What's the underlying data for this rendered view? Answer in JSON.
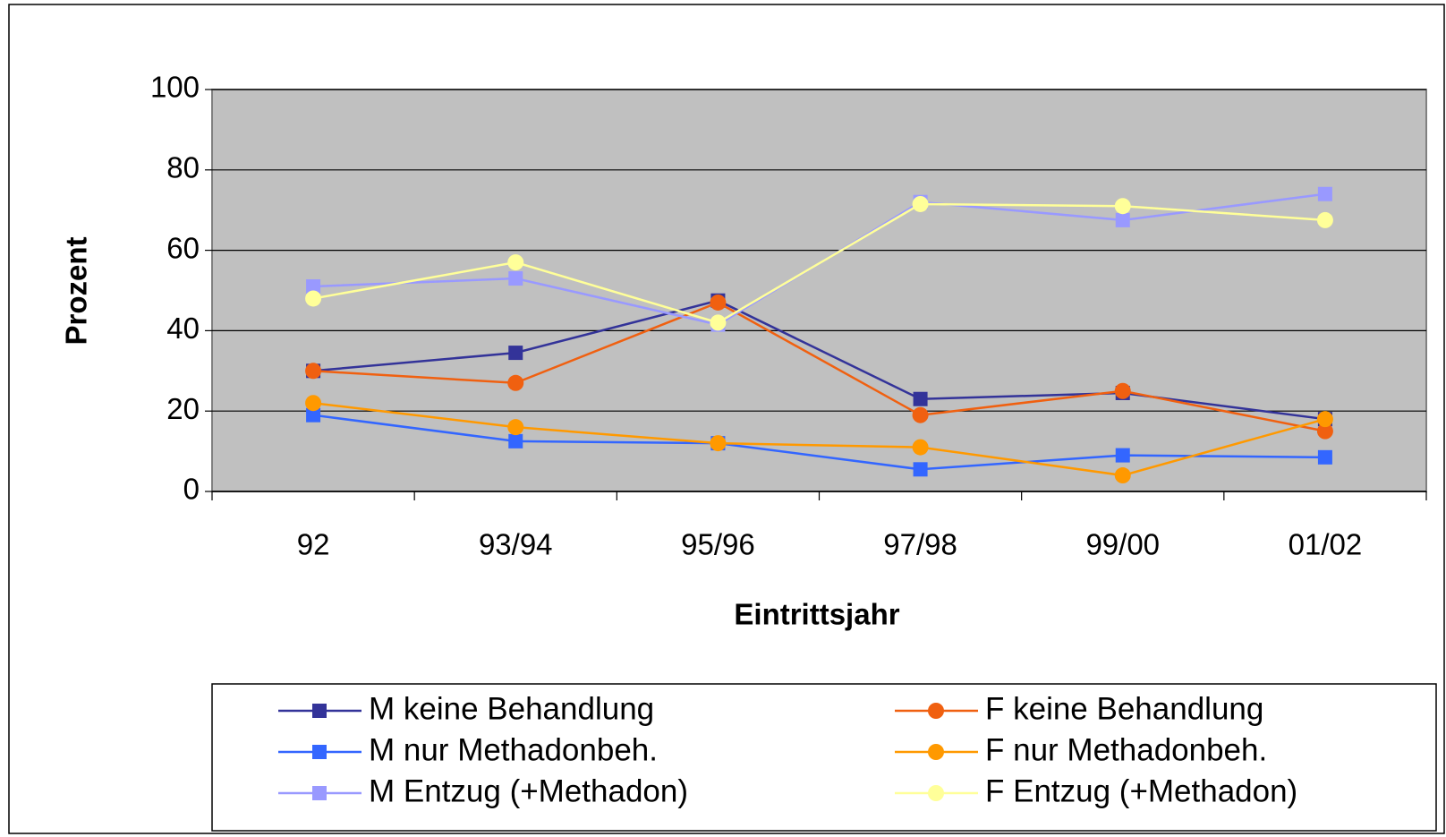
{
  "chart_data": {
    "type": "line",
    "x_label": "Eintrittsjahr",
    "y_label": "Prozent",
    "categories": [
      "92",
      "93/94",
      "95/96",
      "97/98",
      "99/00",
      "01/02"
    ],
    "series": [
      {
        "name": "M keine Behandlung",
        "color": "#333399",
        "marker": "square",
        "values": [
          30,
          34.5,
          47.5,
          23,
          24.5,
          18
        ]
      },
      {
        "name": "F keine Behandlung",
        "color": "#f06010",
        "marker": "circle",
        "values": [
          30,
          27,
          47,
          19,
          25,
          15
        ]
      },
      {
        "name": "M nur Methadonbeh.",
        "color": "#3366ff",
        "marker": "square",
        "values": [
          19,
          12.5,
          12,
          5.5,
          9,
          8.5
        ]
      },
      {
        "name": "F nur Methadonbeh.",
        "color": "#ff9900",
        "marker": "circle",
        "values": [
          22,
          16,
          12,
          11,
          4,
          18
        ]
      },
      {
        "name": "M Entzug (+Methadon)",
        "color": "#9999ff",
        "marker": "square",
        "values": [
          51,
          53,
          41.5,
          72,
          67.5,
          74
        ]
      },
      {
        "name": "F Entzug (+Methadon)",
        "color": "#ffff99",
        "marker": "circle",
        "values": [
          48,
          57,
          42,
          71.5,
          71,
          67.5
        ]
      }
    ],
    "ylim": [
      0,
      100
    ],
    "yticks": [
      0,
      20,
      40,
      60,
      80,
      100
    ],
    "grid": true,
    "legend": "bottom"
  }
}
